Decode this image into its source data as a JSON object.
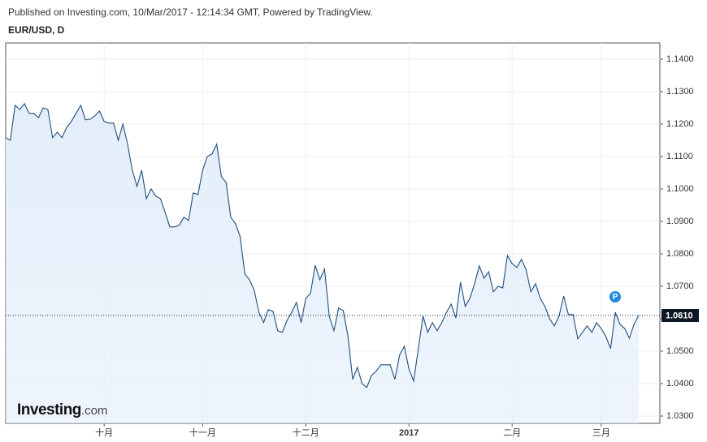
{
  "header": {
    "published": "Published on Investing.com, 10/Mar/2017 - 12:14:34 GMT, Powered by TradingView.",
    "symbol": "EUR/USD, D"
  },
  "logo": {
    "brand": "Investing",
    "suffix": ".com"
  },
  "chart_data": {
    "type": "area",
    "categories": [
      null,
      null,
      null,
      null,
      null,
      null,
      null,
      null,
      null,
      null,
      null,
      null,
      null,
      null,
      null,
      null,
      null,
      null,
      null,
      null,
      null,
      "十月",
      null,
      null,
      null,
      null,
      null,
      null,
      null,
      null,
      null,
      null,
      null,
      null,
      null,
      null,
      null,
      null,
      null,
      null,
      null,
      null,
      "十一月",
      null,
      null,
      null,
      null,
      null,
      null,
      null,
      null,
      null,
      null,
      null,
      null,
      null,
      null,
      null,
      null,
      null,
      null,
      null,
      null,
      null,
      "十二月",
      null,
      null,
      null,
      null,
      null,
      null,
      null,
      null,
      null,
      null,
      null,
      null,
      null,
      null,
      null,
      null,
      null,
      null,
      null,
      null,
      null,
      "2017",
      null,
      null,
      null,
      null,
      null,
      null,
      null,
      null,
      null,
      null,
      null,
      null,
      null,
      null,
      null,
      null,
      null,
      null,
      null,
      null,
      null,
      "二月",
      null,
      null,
      null,
      null,
      null,
      null,
      null,
      null,
      null,
      null,
      null,
      null,
      null,
      null,
      null,
      null,
      null,
      null,
      "三月",
      null,
      null,
      null,
      null,
      null,
      null,
      null,
      null
    ],
    "values": [
      1.1158,
      1.115,
      1.1258,
      1.1245,
      1.1263,
      1.1233,
      1.1233,
      1.122,
      1.125,
      1.1245,
      1.1158,
      1.1175,
      1.1158,
      1.119,
      1.1208,
      1.1233,
      1.1258,
      1.1213,
      1.1215,
      1.1225,
      1.124,
      1.1208,
      1.1203,
      1.1203,
      1.115,
      1.12,
      1.1138,
      1.1058,
      1.1008,
      1.1058,
      1.097,
      1.1,
      1.0978,
      1.097,
      1.0928,
      1.0883,
      1.0883,
      1.0888,
      1.0913,
      1.0903,
      1.0988,
      1.0983,
      1.1058,
      1.11,
      1.1108,
      1.1138,
      1.1038,
      1.102,
      1.0913,
      1.0893,
      1.0853,
      1.0738,
      1.072,
      1.0688,
      1.062,
      1.0588,
      1.0628,
      1.0623,
      1.0563,
      1.0558,
      1.0595,
      1.062,
      1.065,
      1.0588,
      1.0663,
      1.0678,
      1.0765,
      1.072,
      1.0753,
      1.0608,
      1.0563,
      1.0633,
      1.0625,
      1.0545,
      1.0413,
      1.045,
      1.04,
      1.0388,
      1.0425,
      1.0438,
      1.0458,
      1.0458,
      1.0458,
      1.0413,
      1.0488,
      1.0515,
      1.0445,
      1.0408,
      1.0508,
      1.0608,
      1.0558,
      1.0588,
      1.0563,
      1.0588,
      1.062,
      1.0645,
      1.0603,
      1.0713,
      1.0638,
      1.0663,
      1.0708,
      1.0763,
      1.0725,
      1.0745,
      1.0683,
      1.07,
      1.0695,
      1.0795,
      1.077,
      1.0758,
      1.0783,
      1.075,
      1.0683,
      1.0708,
      1.0663,
      1.0638,
      1.06,
      1.0578,
      1.0608,
      1.067,
      1.0613,
      1.0613,
      1.0538,
      1.0558,
      1.0578,
      1.0558,
      1.0588,
      1.057,
      1.0545,
      1.0508,
      1.062,
      1.0583,
      1.057,
      1.054,
      1.0583,
      1.061
    ],
    "color": "#1f4f7d",
    "fill": "#e3eefa",
    "ylim": [
      1.02775,
      1.145
    ],
    "yticks": [
      {
        "value": 1.03,
        "label": "1.0300"
      },
      {
        "value": 1.04,
        "label": "1.0400"
      },
      {
        "value": 1.05,
        "label": "1.0500"
      },
      {
        "value": 1.06,
        "label": "1.0600"
      },
      {
        "value": 1.07,
        "label": "1.0700"
      },
      {
        "value": 1.08,
        "label": "1.0800"
      },
      {
        "value": 1.09,
        "label": "1.0900"
      },
      {
        "value": 1.1,
        "label": "1.1000"
      },
      {
        "value": 1.11,
        "label": "1.1100"
      },
      {
        "value": 1.12,
        "label": "1.1200"
      },
      {
        "value": 1.13,
        "label": "1.1300"
      },
      {
        "value": 1.14,
        "label": "1.1400"
      }
    ],
    "grid": true,
    "current_price": {
      "value": 1.061,
      "label": "1.0610"
    },
    "marker_label": "P"
  }
}
